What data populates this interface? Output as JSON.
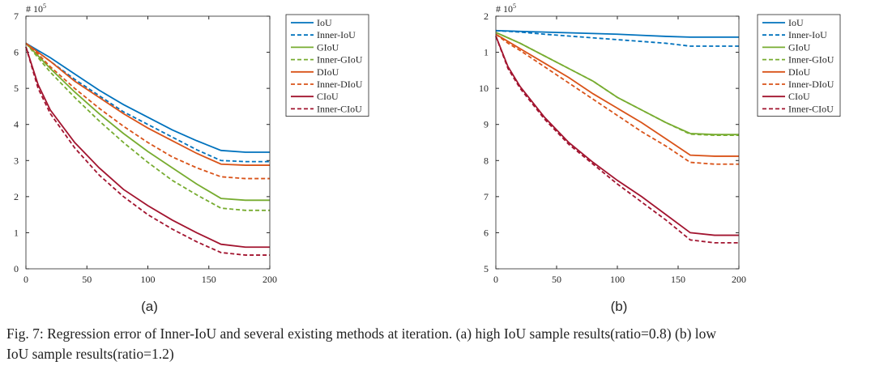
{
  "chart_data": [
    {
      "type": "line",
      "axis_multiplier": {
        "base": "# 10",
        "exponent": "5"
      },
      "panel_label": "(a)",
      "x": [
        0,
        10,
        20,
        40,
        60,
        80,
        100,
        120,
        140,
        160,
        180,
        200
      ],
      "xlim": [
        0,
        200
      ],
      "xticks": [
        0,
        50,
        100,
        150,
        200
      ],
      "ylim": [
        0,
        7
      ],
      "yticks": [
        0,
        1,
        2,
        3,
        4,
        5,
        6,
        7
      ],
      "series": [
        {
          "name": "IoU",
          "color": "#0072bd",
          "dashed": false,
          "values": [
            6.25,
            6.05,
            5.85,
            5.4,
            4.95,
            4.55,
            4.2,
            3.85,
            3.55,
            3.28,
            3.23,
            3.23
          ]
        },
        {
          "name": "Inner-IoU",
          "color": "#0072bd",
          "dashed": true,
          "values": [
            6.25,
            6.0,
            5.75,
            5.25,
            4.8,
            4.35,
            4.0,
            3.65,
            3.3,
            3.0,
            2.97,
            2.97
          ]
        },
        {
          "name": "GIoU",
          "color": "#77ac30",
          "dashed": false,
          "values": [
            6.25,
            5.9,
            5.55,
            4.9,
            4.3,
            3.75,
            3.25,
            2.8,
            2.35,
            1.95,
            1.9,
            1.9
          ]
        },
        {
          "name": "Inner-GIoU",
          "color": "#77ac30",
          "dashed": true,
          "values": [
            6.25,
            5.85,
            5.45,
            4.75,
            4.1,
            3.5,
            2.95,
            2.45,
            2.05,
            1.68,
            1.62,
            1.62
          ]
        },
        {
          "name": "DIoU",
          "color": "#d95319",
          "dashed": false,
          "values": [
            6.25,
            6.0,
            5.75,
            5.2,
            4.75,
            4.3,
            3.9,
            3.55,
            3.2,
            2.9,
            2.87,
            2.87
          ]
        },
        {
          "name": "Inner-DIoU",
          "color": "#d95319",
          "dashed": true,
          "values": [
            6.25,
            5.95,
            5.6,
            5.0,
            4.45,
            3.95,
            3.5,
            3.1,
            2.8,
            2.55,
            2.5,
            2.5
          ]
        },
        {
          "name": "CIoU",
          "color": "#a2142f",
          "dashed": false,
          "values": [
            6.15,
            5.1,
            4.4,
            3.5,
            2.8,
            2.2,
            1.75,
            1.35,
            1.0,
            0.68,
            0.6,
            0.6
          ]
        },
        {
          "name": "Inner-CIoU",
          "color": "#a2142f",
          "dashed": true,
          "values": [
            6.15,
            5.0,
            4.3,
            3.35,
            2.6,
            2.0,
            1.5,
            1.1,
            0.75,
            0.45,
            0.38,
            0.38
          ]
        }
      ]
    },
    {
      "type": "line",
      "axis_multiplier": {
        "base": "# 10",
        "exponent": "5"
      },
      "panel_label": "(b)",
      "x": [
        0,
        10,
        20,
        40,
        60,
        80,
        100,
        120,
        140,
        160,
        180,
        200
      ],
      "xlim": [
        0,
        200
      ],
      "xticks": [
        0,
        50,
        100,
        150,
        200
      ],
      "ylim": [
        5,
        12
      ],
      "yticks": [
        5,
        6,
        7,
        8,
        9,
        {
          "value": 10,
          "label": "10"
        },
        {
          "value": 11,
          "label": "1"
        },
        {
          "value": 12,
          "label": "2"
        }
      ],
      "series": [
        {
          "name": "IoU",
          "color": "#0072bd",
          "dashed": false,
          "values": [
            11.6,
            11.59,
            11.58,
            11.56,
            11.54,
            11.52,
            11.5,
            11.47,
            11.44,
            11.42,
            11.42,
            11.42
          ]
        },
        {
          "name": "Inner-IoU",
          "color": "#0072bd",
          "dashed": true,
          "values": [
            11.6,
            11.58,
            11.56,
            11.5,
            11.45,
            11.4,
            11.35,
            11.3,
            11.25,
            11.17,
            11.17,
            11.17
          ]
        },
        {
          "name": "GIoU",
          "color": "#77ac30",
          "dashed": false,
          "values": [
            11.55,
            11.4,
            11.25,
            10.9,
            10.55,
            10.2,
            9.75,
            9.4,
            9.05,
            8.75,
            8.72,
            8.72
          ]
        },
        {
          "name": "Inner-GIoU",
          "color": "#77ac30",
          "dashed": true,
          "values": [
            11.55,
            11.4,
            11.25,
            10.9,
            10.55,
            10.2,
            9.75,
            9.4,
            9.05,
            8.73,
            8.7,
            8.7
          ]
        },
        {
          "name": "DIoU",
          "color": "#d95319",
          "dashed": false,
          "values": [
            11.5,
            11.3,
            11.1,
            10.7,
            10.3,
            9.85,
            9.45,
            9.05,
            8.6,
            8.15,
            8.12,
            8.12
          ]
        },
        {
          "name": "Inner-DIoU",
          "color": "#d95319",
          "dashed": true,
          "values": [
            11.5,
            11.25,
            11.05,
            10.6,
            10.15,
            9.7,
            9.25,
            8.8,
            8.4,
            7.95,
            7.9,
            7.9
          ]
        },
        {
          "name": "CIoU",
          "color": "#a2142f",
          "dashed": false,
          "values": [
            11.45,
            10.6,
            10.05,
            9.2,
            8.5,
            7.95,
            7.45,
            7.0,
            6.5,
            6.0,
            5.93,
            5.93
          ]
        },
        {
          "name": "Inner-CIoU",
          "color": "#a2142f",
          "dashed": true,
          "values": [
            11.45,
            10.55,
            10.0,
            9.15,
            8.45,
            7.9,
            7.35,
            6.85,
            6.35,
            5.8,
            5.72,
            5.72
          ]
        }
      ]
    }
  ],
  "caption": {
    "line1": "Fig. 7: Regression error of Inner-IoU and several existing methods at iteration. (a) high IoU sample results(ratio=0.8) (b) low",
    "line2": "IoU sample results(ratio=1.2)"
  }
}
